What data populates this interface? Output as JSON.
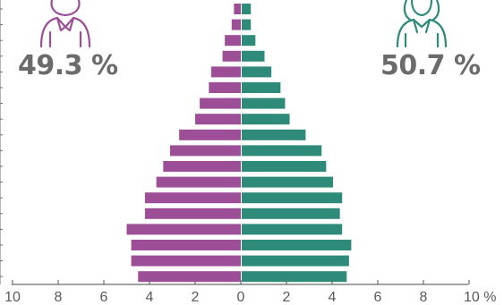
{
  "male_share": "49.3 %",
  "female_share": "50.7 %",
  "colors": {
    "male": "#9c4f96",
    "female": "#2e8b7a",
    "axis": "#6b6b6b",
    "text": "#6b6b6b"
  },
  "icons": {
    "male": "man-outline-icon",
    "female": "woman-outline-icon"
  },
  "chart_data": {
    "type": "bar",
    "orientation": "horizontal-population-pyramid",
    "x_tick_labels": [
      "10",
      "8",
      "6",
      "4",
      "2",
      "0",
      "2",
      "4",
      "6",
      "8",
      "10 %"
    ],
    "xlim": [
      -10,
      10
    ],
    "series": [
      {
        "values": [
          0.3,
          0.4,
          0.7,
          0.8,
          1.3,
          1.4,
          1.8,
          2.0,
          2.7,
          3.1,
          3.4,
          3.7,
          4.2,
          4.2,
          5.0,
          4.8,
          4.8,
          4.5
        ]
      },
      {
        "values": [
          0.4,
          0.4,
          0.6,
          1.0,
          1.3,
          1.7,
          1.9,
          2.1,
          2.8,
          3.5,
          3.7,
          4.0,
          4.4,
          4.3,
          4.4,
          4.8,
          4.7,
          4.6
        ]
      }
    ]
  }
}
